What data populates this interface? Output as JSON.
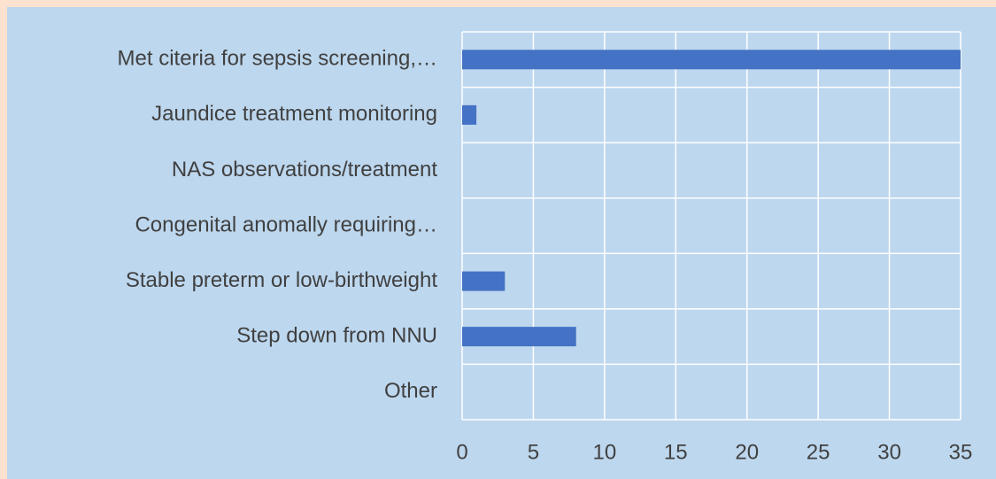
{
  "chart_data": {
    "type": "hbar",
    "categories": [
      "Met citeria for sepsis screening,…",
      "Jaundice treatment monitoring",
      "NAS observations/treatment",
      "Congenital anomally requiring…",
      "Stable preterm or low-birthweight",
      "Step down from NNU",
      "Other"
    ],
    "values": [
      35,
      1,
      0,
      0,
      3,
      8,
      0
    ],
    "color": "#4472c4",
    "xlim": [
      0,
      35
    ],
    "xticks": [
      0,
      5,
      10,
      15,
      20,
      25,
      30,
      35
    ],
    "grid": true
  }
}
